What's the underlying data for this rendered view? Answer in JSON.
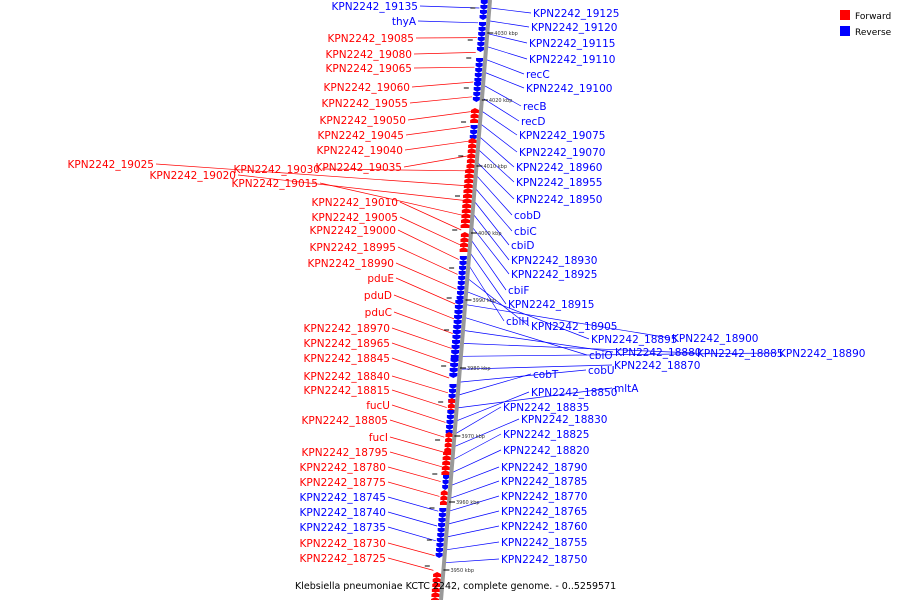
{
  "colors": {
    "forward": "#ff0000",
    "reverse": "#0000ff",
    "backbone": "#999999"
  },
  "legend": [
    {
      "label": "Forward",
      "strand": "forward"
    },
    {
      "label": "Reverse",
      "strand": "reverse"
    }
  ],
  "caption": "Klebsiella pneumoniae KCTC 2242, complete genome. - 0..5259571",
  "ticks": [
    "4030 kbp",
    "4020 kbp",
    "4010 kbp",
    "4000 kbp",
    "3990 kbp",
    "3980 kbp",
    "3970 kbp",
    "3960 kbp",
    "3950 kbp"
  ],
  "left_labels": [
    {
      "text": "KPN2242_19135",
      "strand": "reverse"
    },
    {
      "text": "thyA",
      "strand": "reverse"
    },
    {
      "text": "KPN2242_19085",
      "strand": "forward"
    },
    {
      "text": "KPN2242_19080",
      "strand": "forward"
    },
    {
      "text": "KPN2242_19065",
      "strand": "forward"
    },
    {
      "text": "KPN2242_19060",
      "strand": "forward"
    },
    {
      "text": "KPN2242_19055",
      "strand": "forward"
    },
    {
      "text": "KPN2242_19050",
      "strand": "forward"
    },
    {
      "text": "KPN2242_19045",
      "strand": "forward"
    },
    {
      "text": "KPN2242_19040",
      "strand": "forward"
    },
    {
      "text": "KPN2242_19035",
      "strand": "forward"
    },
    {
      "text": "KPN2242_19030",
      "strand": "forward"
    },
    {
      "text": "KPN2242_19025",
      "strand": "forward"
    },
    {
      "text": "KPN2242_19020",
      "strand": "forward"
    },
    {
      "text": "KPN2242_19015",
      "strand": "forward"
    },
    {
      "text": "KPN2242_19010",
      "strand": "forward"
    },
    {
      "text": "KPN2242_19005",
      "strand": "forward"
    },
    {
      "text": "KPN2242_19000",
      "strand": "forward"
    },
    {
      "text": "KPN2242_18995",
      "strand": "forward"
    },
    {
      "text": "KPN2242_18990",
      "strand": "forward"
    },
    {
      "text": "pduE",
      "strand": "forward"
    },
    {
      "text": "pduD",
      "strand": "forward"
    },
    {
      "text": "pduC",
      "strand": "forward"
    },
    {
      "text": "KPN2242_18970",
      "strand": "forward"
    },
    {
      "text": "KPN2242_18965",
      "strand": "forward"
    },
    {
      "text": "KPN2242_18845",
      "strand": "forward"
    },
    {
      "text": "KPN2242_18840",
      "strand": "forward"
    },
    {
      "text": "KPN2242_18815",
      "strand": "forward"
    },
    {
      "text": "fucU",
      "strand": "forward"
    },
    {
      "text": "KPN2242_18805",
      "strand": "forward"
    },
    {
      "text": "fucI",
      "strand": "forward"
    },
    {
      "text": "KPN2242_18795",
      "strand": "forward"
    },
    {
      "text": "KPN2242_18780",
      "strand": "forward"
    },
    {
      "text": "KPN2242_18775",
      "strand": "forward"
    },
    {
      "text": "KPN2242_18745",
      "strand": "reverse"
    },
    {
      "text": "KPN2242_18740",
      "strand": "reverse"
    },
    {
      "text": "KPN2242_18735",
      "strand": "reverse"
    },
    {
      "text": "KPN2242_18730",
      "strand": "forward"
    },
    {
      "text": "KPN2242_18725",
      "strand": "forward"
    }
  ],
  "right_labels": [
    {
      "text": "KPN2242_19125",
      "strand": "reverse"
    },
    {
      "text": "KPN2242_19120",
      "strand": "reverse"
    },
    {
      "text": "KPN2242_19115",
      "strand": "reverse"
    },
    {
      "text": "KPN2242_19110",
      "strand": "reverse"
    },
    {
      "text": "recC",
      "strand": "reverse"
    },
    {
      "text": "KPN2242_19100",
      "strand": "reverse"
    },
    {
      "text": "recB",
      "strand": "reverse"
    },
    {
      "text": "recD",
      "strand": "reverse"
    },
    {
      "text": "KPN2242_19075",
      "strand": "reverse"
    },
    {
      "text": "KPN2242_19070",
      "strand": "reverse"
    },
    {
      "text": "KPN2242_18960",
      "strand": "reverse"
    },
    {
      "text": "KPN2242_18955",
      "strand": "reverse"
    },
    {
      "text": "KPN2242_18950",
      "strand": "reverse"
    },
    {
      "text": "cobD",
      "strand": "reverse"
    },
    {
      "text": "cbiC",
      "strand": "reverse"
    },
    {
      "text": "cbiD",
      "strand": "reverse"
    },
    {
      "text": "KPN2242_18930",
      "strand": "reverse"
    },
    {
      "text": "KPN2242_18925",
      "strand": "reverse"
    },
    {
      "text": "cbiF",
      "strand": "reverse"
    },
    {
      "text": "KPN2242_18915",
      "strand": "reverse"
    },
    {
      "text": "cbiH",
      "strand": "reverse"
    },
    {
      "text": "KPN2242_18905",
      "strand": "reverse"
    },
    {
      "text": "KPN2242_18895",
      "strand": "reverse"
    },
    {
      "text": "KPN2242_18900",
      "strand": "reverse"
    },
    {
      "text": "cbiO",
      "strand": "reverse"
    },
    {
      "text": "KPN2242_18880",
      "strand": "reverse"
    },
    {
      "text": "KPN2242_18885",
      "strand": "reverse"
    },
    {
      "text": "KPN2242_18890",
      "strand": "reverse"
    },
    {
      "text": "KPN2242_18870",
      "strand": "reverse"
    },
    {
      "text": "cobU",
      "strand": "reverse"
    },
    {
      "text": "cobT",
      "strand": "reverse"
    },
    {
      "text": "mltA",
      "strand": "reverse"
    },
    {
      "text": "KPN2242_18850",
      "strand": "reverse"
    },
    {
      "text": "KPN2242_18835",
      "strand": "reverse"
    },
    {
      "text": "KPN2242_18830",
      "strand": "reverse"
    },
    {
      "text": "KPN2242_18825",
      "strand": "reverse"
    },
    {
      "text": "KPN2242_18820",
      "strand": "reverse"
    },
    {
      "text": "KPN2242_18790",
      "strand": "reverse"
    },
    {
      "text": "KPN2242_18785",
      "strand": "reverse"
    },
    {
      "text": "KPN2242_18770",
      "strand": "reverse"
    },
    {
      "text": "KPN2242_18765",
      "strand": "reverse"
    },
    {
      "text": "KPN2242_18760",
      "strand": "reverse"
    },
    {
      "text": "KPN2242_18755",
      "strand": "reverse"
    },
    {
      "text": "KPN2242_18750",
      "strand": "reverse"
    }
  ]
}
